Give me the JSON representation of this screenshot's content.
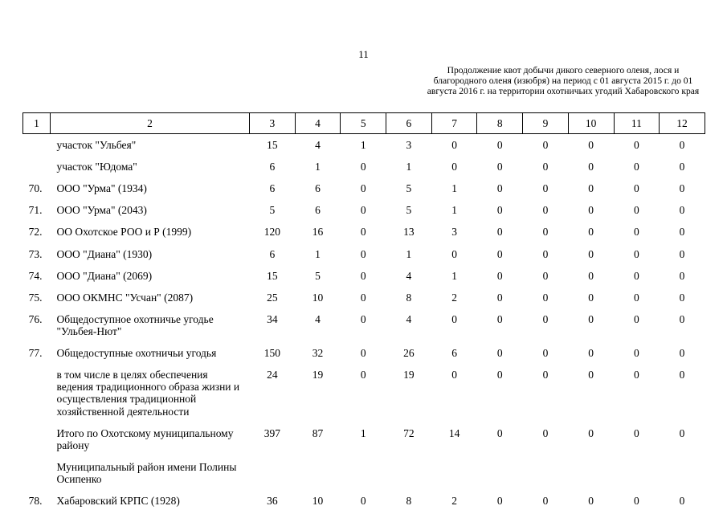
{
  "page": {
    "number": "11",
    "header_note": "Продолжение квот добычи дикого северного оленя, лося и благородного оленя (изюбря) на период с 01 августа 2015 г. до 01 августа 2016 г. на территории охотничьих угодий Хабаровского края"
  },
  "table": {
    "columns": [
      "1",
      "2",
      "3",
      "4",
      "5",
      "6",
      "7",
      "8",
      "9",
      "10",
      "11",
      "12"
    ],
    "rows": [
      {
        "num": "",
        "name": "участок \"Ульбея\"",
        "values": [
          "15",
          "4",
          "1",
          "3",
          "0",
          "0",
          "0",
          "0",
          "0",
          "0"
        ]
      },
      {
        "num": "",
        "name": "участок \"Юдома\"",
        "values": [
          "6",
          "1",
          "0",
          "1",
          "0",
          "0",
          "0",
          "0",
          "0",
          "0"
        ]
      },
      {
        "num": "70.",
        "name": "ООО \"Урма\" (1934)",
        "values": [
          "6",
          "6",
          "0",
          "5",
          "1",
          "0",
          "0",
          "0",
          "0",
          "0"
        ]
      },
      {
        "num": "71.",
        "name": "ООО \"Урма\" (2043)",
        "values": [
          "5",
          "6",
          "0",
          "5",
          "1",
          "0",
          "0",
          "0",
          "0",
          "0"
        ]
      },
      {
        "num": "72.",
        "name": "ОО Охотское РОО и Р (1999)",
        "values": [
          "120",
          "16",
          "0",
          "13",
          "3",
          "0",
          "0",
          "0",
          "0",
          "0"
        ]
      },
      {
        "num": "73.",
        "name": "ООО \"Диана\" (1930)",
        "values": [
          "6",
          "1",
          "0",
          "1",
          "0",
          "0",
          "0",
          "0",
          "0",
          "0"
        ]
      },
      {
        "num": "74.",
        "name": "ООО \"Диана\" (2069)",
        "values": [
          "15",
          "5",
          "0",
          "4",
          "1",
          "0",
          "0",
          "0",
          "0",
          "0"
        ]
      },
      {
        "num": "75.",
        "name": "ООО ОКМНС \"Усчан\" (2087)",
        "values": [
          "25",
          "10",
          "0",
          "8",
          "2",
          "0",
          "0",
          "0",
          "0",
          "0"
        ]
      },
      {
        "num": "76.",
        "name": "Общедоступное охотничье угодье \"Ульбея-Нют\"",
        "values": [
          "34",
          "4",
          "0",
          "4",
          "0",
          "0",
          "0",
          "0",
          "0",
          "0"
        ]
      },
      {
        "num": "77.",
        "name": "Общедоступные охотничьи угодья",
        "values": [
          "150",
          "32",
          "0",
          "26",
          "6",
          "0",
          "0",
          "0",
          "0",
          "0"
        ]
      },
      {
        "num": "",
        "name": "в том числе в целях обеспечения ведения традиционного образа жизни и осуществления традиционной хозяйственной деятельности",
        "values": [
          "24",
          "19",
          "0",
          "19",
          "0",
          "0",
          "0",
          "0",
          "0",
          "0"
        ]
      },
      {
        "num": "",
        "name": "Итого по Охотскому муниципальному району",
        "values": [
          "397",
          "87",
          "1",
          "72",
          "14",
          "0",
          "0",
          "0",
          "0",
          "0"
        ]
      },
      {
        "num": "",
        "name": "Муниципальный район имени Полины Осипенко",
        "values": [
          "",
          "",
          "",
          "",
          "",
          "",
          "",
          "",
          "",
          ""
        ]
      },
      {
        "num": "78.",
        "name": "Хабаровский КРПС (1928)",
        "values": [
          "36",
          "10",
          "0",
          "8",
          "2",
          "0",
          "0",
          "0",
          "0",
          "0"
        ]
      }
    ]
  }
}
